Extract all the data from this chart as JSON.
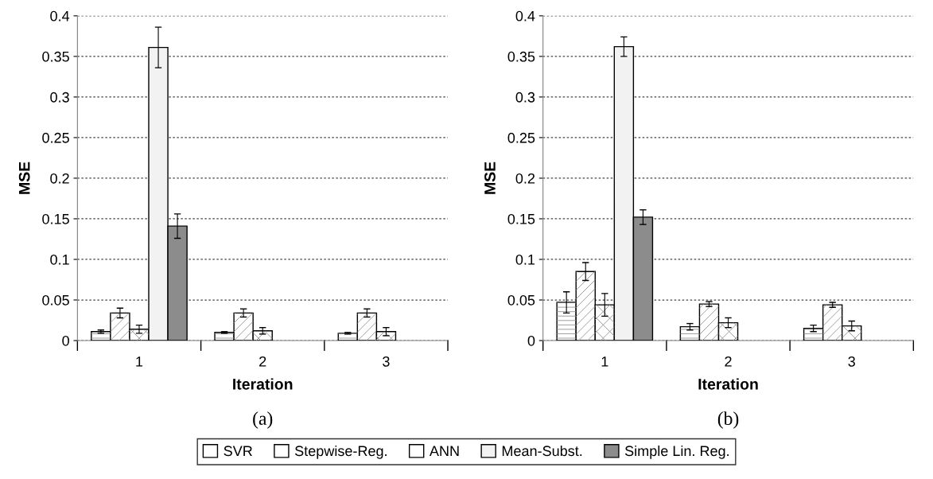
{
  "chart_data": [
    {
      "type": "bar",
      "xlabel": "Iteration",
      "ylabel": "MSE",
      "categories": [
        "1",
        "2",
        "3"
      ],
      "ylim": [
        0,
        0.4
      ],
      "yticks": [
        0,
        0.05,
        0.1,
        0.15,
        0.2,
        0.25,
        0.3,
        0.35,
        0.4
      ],
      "grid": "y",
      "legend": "bottom",
      "annotations": [
        "(a)"
      ],
      "series": [
        {
          "name": "SVR",
          "color": "#ffffff",
          "values": [
            0.011,
            0.01,
            0.009
          ],
          "errors": [
            0.002,
            0.001,
            0.001
          ]
        },
        {
          "name": "Stepwise-Reg.",
          "color": "#ffffff",
          "values": [
            0.034,
            0.034,
            0.034
          ],
          "errors": [
            0.006,
            0.005,
            0.005
          ]
        },
        {
          "name": "ANN",
          "color": "#ffffff",
          "values": [
            0.014,
            0.012,
            0.011
          ],
          "errors": [
            0.005,
            0.004,
            0.005
          ]
        },
        {
          "name": "Mean-Subst.",
          "color": "#f2f2f2",
          "values": [
            0.361,
            null,
            null
          ],
          "errors": [
            0.025,
            null,
            null
          ]
        },
        {
          "name": "Simple Lin. Reg.",
          "color": "#8c8c8c",
          "values": [
            0.141,
            null,
            null
          ],
          "errors": [
            0.015,
            null,
            null
          ]
        }
      ]
    },
    {
      "type": "bar",
      "xlabel": "Iteration",
      "ylabel": "MSE",
      "categories": [
        "1",
        "2",
        "3"
      ],
      "ylim": [
        0,
        0.4
      ],
      "yticks": [
        0,
        0.05,
        0.1,
        0.15,
        0.2,
        0.25,
        0.3,
        0.35,
        0.4
      ],
      "grid": "y",
      "annotations": [
        "(b)"
      ],
      "series": [
        {
          "name": "SVR",
          "color": "#ffffff",
          "values": [
            0.047,
            0.017,
            0.015
          ],
          "errors": [
            0.013,
            0.004,
            0.004
          ]
        },
        {
          "name": "Stepwise-Reg.",
          "color": "#ffffff",
          "values": [
            0.085,
            0.045,
            0.044
          ],
          "errors": [
            0.011,
            0.003,
            0.003
          ]
        },
        {
          "name": "ANN",
          "color": "#ffffff",
          "values": [
            0.044,
            0.022,
            0.018
          ],
          "errors": [
            0.014,
            0.006,
            0.006
          ]
        },
        {
          "name": "Mean-Subst.",
          "color": "#f2f2f2",
          "values": [
            0.362,
            null,
            null
          ],
          "errors": [
            0.012,
            null,
            null
          ]
        },
        {
          "name": "Simple Lin. Reg.",
          "color": "#8c8c8c",
          "values": [
            0.152,
            null,
            null
          ],
          "errors": [
            0.009,
            null,
            null
          ]
        }
      ]
    }
  ]
}
